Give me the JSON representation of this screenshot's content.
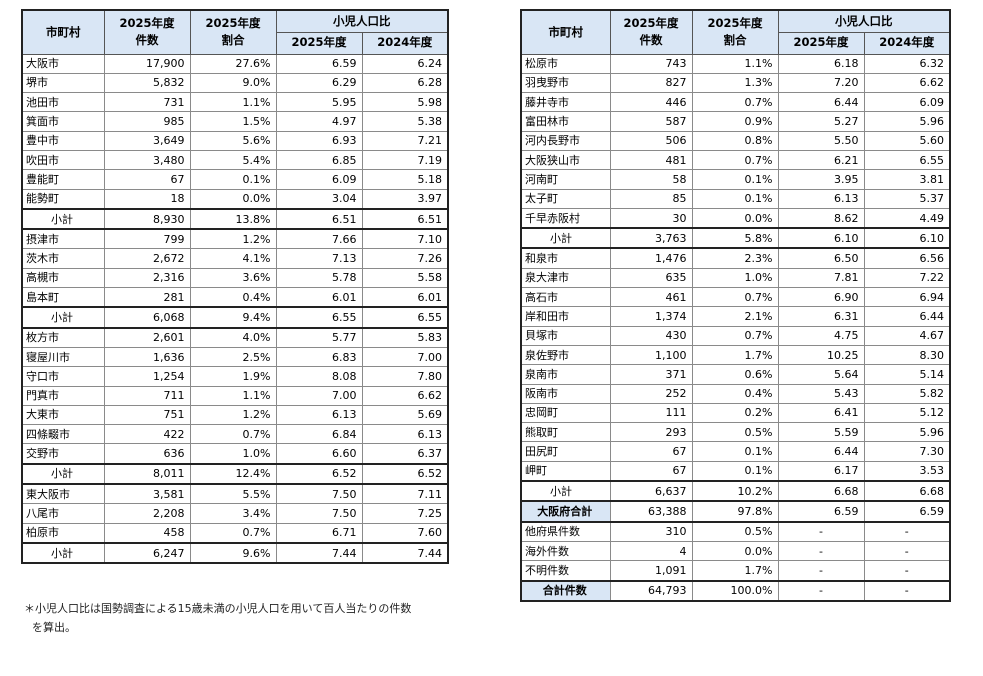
{
  "headers": {
    "city": "市町村",
    "count": "2025年度\n件数",
    "count_l1": "2025年度",
    "count_l2": "件数",
    "ratio_l1": "2025年度",
    "ratio_l2": "割合",
    "child_ratio": "小児人口比",
    "y2025": "2025年度",
    "y2024": "2024年度"
  },
  "left_rows": [
    {
      "name": "大阪市",
      "count": "17,900",
      "ratio": "27.6%",
      "c2025": "6.59",
      "c2024": "6.24",
      "type": "row"
    },
    {
      "name": "堺市",
      "count": "5,832",
      "ratio": "9.0%",
      "c2025": "6.29",
      "c2024": "6.28",
      "type": "row"
    },
    {
      "name": "池田市",
      "count": "731",
      "ratio": "1.1%",
      "c2025": "5.95",
      "c2024": "5.98",
      "type": "row"
    },
    {
      "name": "箕面市",
      "count": "985",
      "ratio": "1.5%",
      "c2025": "4.97",
      "c2024": "5.38",
      "type": "row"
    },
    {
      "name": "豊中市",
      "count": "3,649",
      "ratio": "5.6%",
      "c2025": "6.93",
      "c2024": "7.21",
      "type": "row"
    },
    {
      "name": "吹田市",
      "count": "3,480",
      "ratio": "5.4%",
      "c2025": "6.85",
      "c2024": "7.19",
      "type": "row"
    },
    {
      "name": "豊能町",
      "count": "67",
      "ratio": "0.1%",
      "c2025": "6.09",
      "c2024": "5.18",
      "type": "row"
    },
    {
      "name": "能勢町",
      "count": "18",
      "ratio": "0.0%",
      "c2025": "3.04",
      "c2024": "3.97",
      "type": "row"
    },
    {
      "name": "小計",
      "count": "8,930",
      "ratio": "13.8%",
      "c2025": "6.51",
      "c2024": "6.51",
      "type": "subtotal"
    },
    {
      "name": "摂津市",
      "count": "799",
      "ratio": "1.2%",
      "c2025": "7.66",
      "c2024": "7.10",
      "type": "row"
    },
    {
      "name": "茨木市",
      "count": "2,672",
      "ratio": "4.1%",
      "c2025": "7.13",
      "c2024": "7.26",
      "type": "row"
    },
    {
      "name": "高槻市",
      "count": "2,316",
      "ratio": "3.6%",
      "c2025": "5.78",
      "c2024": "5.58",
      "type": "row"
    },
    {
      "name": "島本町",
      "count": "281",
      "ratio": "0.4%",
      "c2025": "6.01",
      "c2024": "6.01",
      "type": "row"
    },
    {
      "name": "小計",
      "count": "6,068",
      "ratio": "9.4%",
      "c2025": "6.55",
      "c2024": "6.55",
      "type": "subtotal"
    },
    {
      "name": "枚方市",
      "count": "2,601",
      "ratio": "4.0%",
      "c2025": "5.77",
      "c2024": "5.83",
      "type": "row"
    },
    {
      "name": "寝屋川市",
      "count": "1,636",
      "ratio": "2.5%",
      "c2025": "6.83",
      "c2024": "7.00",
      "type": "row"
    },
    {
      "name": "守口市",
      "count": "1,254",
      "ratio": "1.9%",
      "c2025": "8.08",
      "c2024": "7.80",
      "type": "row"
    },
    {
      "name": "門真市",
      "count": "711",
      "ratio": "1.1%",
      "c2025": "7.00",
      "c2024": "6.62",
      "type": "row"
    },
    {
      "name": "大東市",
      "count": "751",
      "ratio": "1.2%",
      "c2025": "6.13",
      "c2024": "5.69",
      "type": "row"
    },
    {
      "name": "四條畷市",
      "count": "422",
      "ratio": "0.7%",
      "c2025": "6.84",
      "c2024": "6.13",
      "type": "row"
    },
    {
      "name": "交野市",
      "count": "636",
      "ratio": "1.0%",
      "c2025": "6.60",
      "c2024": "6.37",
      "type": "row"
    },
    {
      "name": "小計",
      "count": "8,011",
      "ratio": "12.4%",
      "c2025": "6.52",
      "c2024": "6.52",
      "type": "subtotal"
    },
    {
      "name": "東大阪市",
      "count": "3,581",
      "ratio": "5.5%",
      "c2025": "7.50",
      "c2024": "7.11",
      "type": "row"
    },
    {
      "name": "八尾市",
      "count": "2,208",
      "ratio": "3.4%",
      "c2025": "7.50",
      "c2024": "7.25",
      "type": "row"
    },
    {
      "name": "柏原市",
      "count": "458",
      "ratio": "0.7%",
      "c2025": "6.71",
      "c2024": "7.60",
      "type": "row"
    },
    {
      "name": "小計",
      "count": "6,247",
      "ratio": "9.6%",
      "c2025": "7.44",
      "c2024": "7.44",
      "type": "subtotal"
    }
  ],
  "right_rows": [
    {
      "name": "松原市",
      "count": "743",
      "ratio": "1.1%",
      "c2025": "6.18",
      "c2024": "6.32",
      "type": "row"
    },
    {
      "name": "羽曳野市",
      "count": "827",
      "ratio": "1.3%",
      "c2025": "7.20",
      "c2024": "6.62",
      "type": "row"
    },
    {
      "name": "藤井寺市",
      "count": "446",
      "ratio": "0.7%",
      "c2025": "6.44",
      "c2024": "6.09",
      "type": "row"
    },
    {
      "name": "富田林市",
      "count": "587",
      "ratio": "0.9%",
      "c2025": "5.27",
      "c2024": "5.96",
      "type": "row"
    },
    {
      "name": "河内長野市",
      "count": "506",
      "ratio": "0.8%",
      "c2025": "5.50",
      "c2024": "5.60",
      "type": "row"
    },
    {
      "name": "大阪狭山市",
      "count": "481",
      "ratio": "0.7%",
      "c2025": "6.21",
      "c2024": "6.55",
      "type": "row"
    },
    {
      "name": "河南町",
      "count": "58",
      "ratio": "0.1%",
      "c2025": "3.95",
      "c2024": "3.81",
      "type": "row"
    },
    {
      "name": "太子町",
      "count": "85",
      "ratio": "0.1%",
      "c2025": "6.13",
      "c2024": "5.37",
      "type": "row"
    },
    {
      "name": "千早赤阪村",
      "count": "30",
      "ratio": "0.0%",
      "c2025": "8.62",
      "c2024": "4.49",
      "type": "row"
    },
    {
      "name": "小計",
      "count": "3,763",
      "ratio": "5.8%",
      "c2025": "6.10",
      "c2024": "6.10",
      "type": "subtotal"
    },
    {
      "name": "和泉市",
      "count": "1,476",
      "ratio": "2.3%",
      "c2025": "6.50",
      "c2024": "6.56",
      "type": "row"
    },
    {
      "name": "泉大津市",
      "count": "635",
      "ratio": "1.0%",
      "c2025": "7.81",
      "c2024": "7.22",
      "type": "row"
    },
    {
      "name": "高石市",
      "count": "461",
      "ratio": "0.7%",
      "c2025": "6.90",
      "c2024": "6.94",
      "type": "row"
    },
    {
      "name": "岸和田市",
      "count": "1,374",
      "ratio": "2.1%",
      "c2025": "6.31",
      "c2024": "6.44",
      "type": "row"
    },
    {
      "name": "貝塚市",
      "count": "430",
      "ratio": "0.7%",
      "c2025": "4.75",
      "c2024": "4.67",
      "type": "row"
    },
    {
      "name": "泉佐野市",
      "count": "1,100",
      "ratio": "1.7%",
      "c2025": "10.25",
      "c2024": "8.30",
      "type": "row"
    },
    {
      "name": "泉南市",
      "count": "371",
      "ratio": "0.6%",
      "c2025": "5.64",
      "c2024": "5.14",
      "type": "row"
    },
    {
      "name": "阪南市",
      "count": "252",
      "ratio": "0.4%",
      "c2025": "5.43",
      "c2024": "5.82",
      "type": "row"
    },
    {
      "name": "忠岡町",
      "count": "111",
      "ratio": "0.2%",
      "c2025": "6.41",
      "c2024": "5.12",
      "type": "row"
    },
    {
      "name": "熊取町",
      "count": "293",
      "ratio": "0.5%",
      "c2025": "5.59",
      "c2024": "5.96",
      "type": "row"
    },
    {
      "name": "田尻町",
      "count": "67",
      "ratio": "0.1%",
      "c2025": "6.44",
      "c2024": "7.30",
      "type": "row"
    },
    {
      "name": "岬町",
      "count": "67",
      "ratio": "0.1%",
      "c2025": "6.17",
      "c2024": "3.53",
      "type": "row"
    },
    {
      "name": "小計",
      "count": "6,637",
      "ratio": "10.2%",
      "c2025": "6.68",
      "c2024": "6.68",
      "type": "subtotal"
    },
    {
      "name": "大阪府合計",
      "count": "63,388",
      "ratio": "97.8%",
      "c2025": "6.59",
      "c2024": "6.59",
      "type": "total"
    },
    {
      "name": "他府県件数",
      "count": "310",
      "ratio": "0.5%",
      "c2025": "-",
      "c2024": "-",
      "type": "row"
    },
    {
      "name": "海外件数",
      "count": "4",
      "ratio": "0.0%",
      "c2025": "-",
      "c2024": "-",
      "type": "row"
    },
    {
      "name": "不明件数",
      "count": "1,091",
      "ratio": "1.7%",
      "c2025": "-",
      "c2024": "-",
      "type": "row"
    },
    {
      "name": "合計件数",
      "count": "64,793",
      "ratio": "100.0%",
      "c2025": "-",
      "c2024": "-",
      "type": "grand"
    }
  ],
  "note": {
    "line1": "＊小児人口比は国勢調査による15歳未満の小児人口を用いて百人当たりの件数",
    "line2": "を算出。"
  },
  "colors": {
    "header_bg": "#d9e6f5",
    "border": "#222222"
  }
}
